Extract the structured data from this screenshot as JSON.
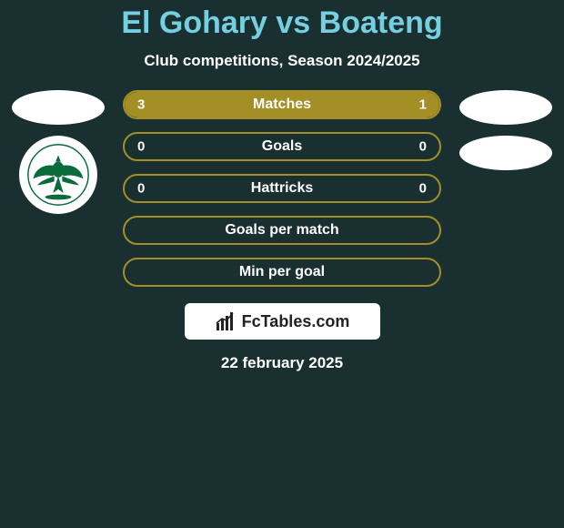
{
  "background_color": "#1a2f30",
  "title": {
    "text": "El Gohary vs Boateng",
    "color": "#74cfe0",
    "fontsize": 34
  },
  "subtitle": {
    "text": "Club competitions, Season 2024/2025",
    "color": "#ffffff",
    "fontsize": 17
  },
  "accent_color": "#a48f26",
  "stat_text_color": "#ffffff",
  "player_left": {
    "name": "El Gohary",
    "club_badge": {
      "shape": "eagle-crest",
      "primary_color": "#0b6b3a",
      "background_color": "#ffffff"
    }
  },
  "player_right": {
    "name": "Boateng"
  },
  "stats": [
    {
      "label": "Matches",
      "left_value": "3",
      "right_value": "1",
      "left_fill_pct": 75,
      "right_fill_pct": 25,
      "fill_color": "#a48f26",
      "border_color": "#a48f26"
    },
    {
      "label": "Goals",
      "left_value": "0",
      "right_value": "0",
      "left_fill_pct": 0,
      "right_fill_pct": 0,
      "fill_color": "#a48f26",
      "border_color": "#a48f26"
    },
    {
      "label": "Hattricks",
      "left_value": "0",
      "right_value": "0",
      "left_fill_pct": 0,
      "right_fill_pct": 0,
      "fill_color": "#a48f26",
      "border_color": "#a48f26"
    },
    {
      "label": "Goals per match",
      "left_value": "",
      "right_value": "",
      "left_fill_pct": 0,
      "right_fill_pct": 0,
      "fill_color": "#a48f26",
      "border_color": "#a48f26"
    },
    {
      "label": "Min per goal",
      "left_value": "",
      "right_value": "",
      "left_fill_pct": 0,
      "right_fill_pct": 0,
      "fill_color": "#a48f26",
      "border_color": "#a48f26"
    }
  ],
  "branding": {
    "text": "FcTables.com",
    "background_color": "#ffffff",
    "text_color": "#222222"
  },
  "date": {
    "text": "22 february 2025",
    "color": "#ffffff",
    "fontsize": 17
  }
}
